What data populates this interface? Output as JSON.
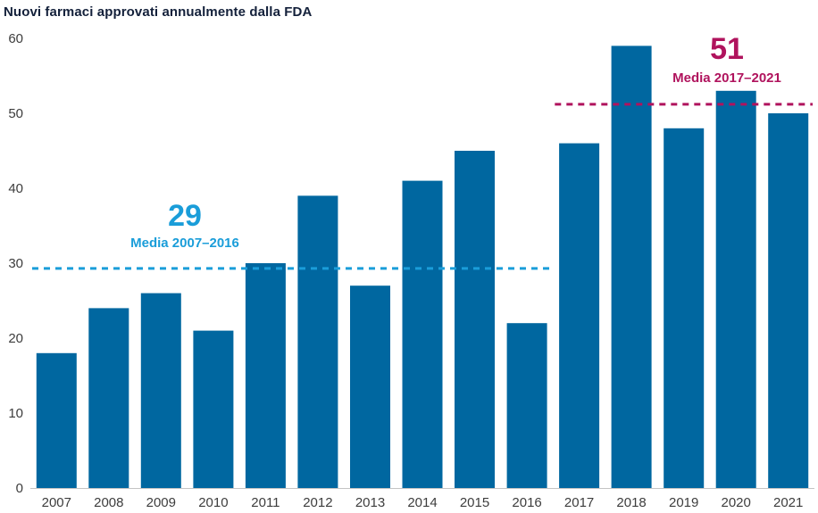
{
  "title": "Nuovi farmaci approvati annualmente dalla FDA",
  "colors": {
    "bar": "#0067a0",
    "avg1": "#1a9dd9",
    "avg2": "#b0135d",
    "axis_text": "#3d3d3d",
    "baseline": "#c4c4c4"
  },
  "chart_data": {
    "type": "bar",
    "title": "Nuovi farmaci approvati annualmente dalla FDA",
    "categories": [
      "2007",
      "2008",
      "2009",
      "2010",
      "2011",
      "2012",
      "2013",
      "2014",
      "2015",
      "2016",
      "2017",
      "2018",
      "2019",
      "2020",
      "2021"
    ],
    "values": [
      18,
      24,
      26,
      21,
      30,
      39,
      27,
      41,
      45,
      22,
      46,
      59,
      48,
      53,
      50
    ],
    "xlabel": "",
    "ylabel": "",
    "ylim": [
      0,
      60
    ],
    "yticks": [
      0,
      10,
      20,
      30,
      40,
      50,
      60
    ],
    "grid": false,
    "legend": "none",
    "annotations": [
      {
        "big_label": "29",
        "label": "Media 2007–2016",
        "line_value": 29.3,
        "from": "2007",
        "to": "2016",
        "color_key": "avg1"
      },
      {
        "big_label": "51",
        "label": "Media 2017–2021",
        "line_value": 51.2,
        "from": "2017",
        "to": "2021",
        "color_key": "avg2"
      }
    ]
  }
}
